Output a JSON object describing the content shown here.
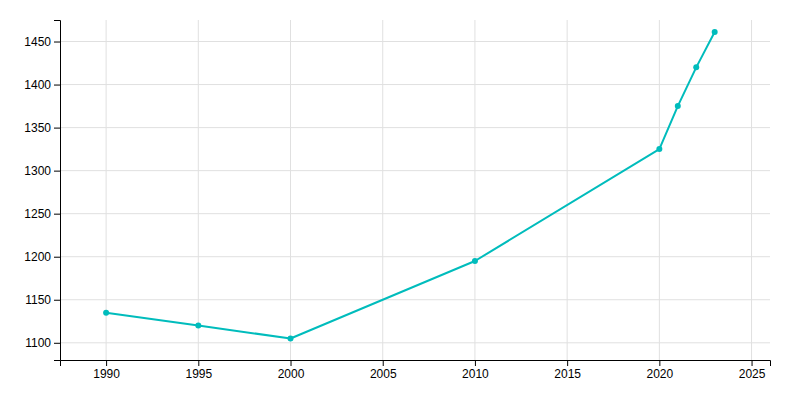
{
  "chart_data": {
    "type": "line",
    "x": [
      1990,
      1995,
      2000,
      2010,
      2020,
      2021,
      2022,
      2023
    ],
    "values": [
      1135,
      1120,
      1105,
      1195,
      1325,
      1375,
      1420,
      1461
    ],
    "color": "#00BCBC",
    "marker": "circle",
    "xlim": [
      1987.5,
      2026
    ],
    "ylim": [
      1080,
      1475
    ],
    "xticks": [
      1990,
      1995,
      2000,
      2005,
      2010,
      2015,
      2020,
      2025
    ],
    "yticks": [
      1100,
      1150,
      1200,
      1250,
      1300,
      1350,
      1400,
      1450
    ],
    "grid": true
  }
}
